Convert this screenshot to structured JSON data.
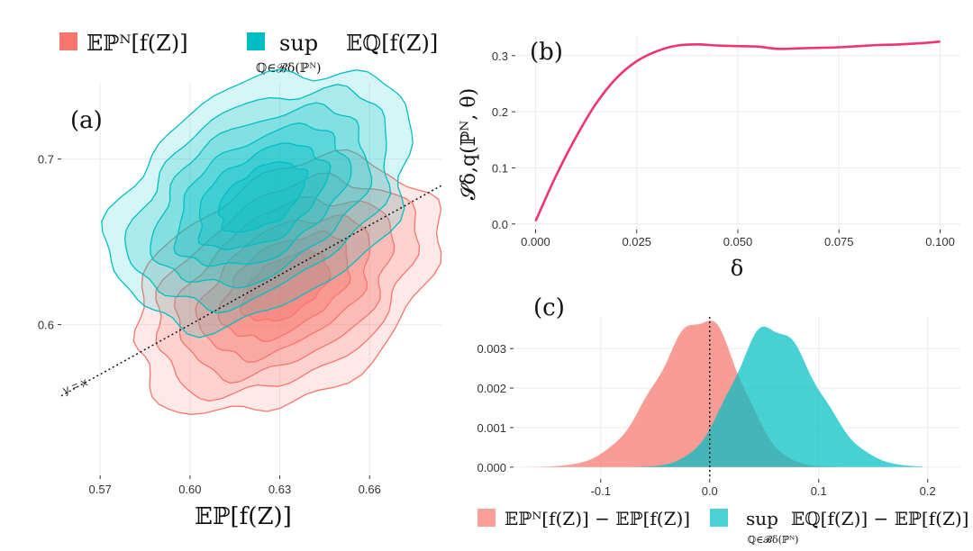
{
  "colors": {
    "red": "#F8766D",
    "teal": "#00BFC4",
    "pink": "#EE3377",
    "grid": "#ebebeb"
  },
  "legend_top": {
    "empirical_label": "𝔼ℙᴺ[f(Z)]",
    "worst_case_sup": "sup",
    "worst_case_sub": "ℚ∈𝓑δ(ℙᴺ)",
    "worst_case_expr": "𝔼ℚ[f(Z)]"
  },
  "legend_bottom": {
    "empirical_label": "𝔼ℙᴺ[f(Z)] − 𝔼ℙ[f(Z)]",
    "worst_case_sup": "sup",
    "worst_case_sub": "ℚ∈𝓑δ(ℙᴺ)",
    "worst_case_expr": "𝔼ℚ[f(Z)] − 𝔼ℙ[f(Z)]"
  },
  "chart_data": [
    {
      "panel": "(a)",
      "type": "contour",
      "title": "",
      "xlabel": "𝔼ℙ[f(Z)]",
      "ylabel": "",
      "xlim": [
        0.557,
        0.684
      ],
      "ylim": [
        0.509,
        0.746
      ],
      "xticks": [
        "0.57",
        "0.60",
        "0.63",
        "0.66"
      ],
      "xtick_values": [
        0.57,
        0.6,
        0.63,
        0.66
      ],
      "yticks": [
        "0.6",
        "0.7"
      ],
      "ytick_values": [
        0.6,
        0.7
      ],
      "reference_line": {
        "label": "y = x",
        "slope": 1,
        "intercept": 0
      },
      "series": [
        {
          "name": "empirical",
          "color": "red",
          "center": [
            0.632,
            0.623
          ],
          "levels": 6
        },
        {
          "name": "worst_case",
          "color": "teal",
          "center": [
            0.624,
            0.677
          ],
          "levels": 6
        }
      ]
    },
    {
      "panel": "(b)",
      "type": "line",
      "title": "",
      "xlabel": "δ",
      "ylabel": "𝓢δ,q(ℙᴺ, θ)",
      "xlim": [
        -0.005,
        0.105
      ],
      "ylim": [
        -0.01,
        0.335
      ],
      "xticks": [
        "0.000",
        "0.025",
        "0.050",
        "0.075",
        "0.100"
      ],
      "xtick_values": [
        0.0,
        0.025,
        0.05,
        0.075,
        0.1
      ],
      "yticks": [
        "0.0",
        "0.1",
        "0.2",
        "0.3"
      ],
      "ytick_values": [
        0.0,
        0.1,
        0.2,
        0.3
      ],
      "x": [
        0.0,
        0.005,
        0.01,
        0.015,
        0.02,
        0.025,
        0.03,
        0.035,
        0.04,
        0.045,
        0.05,
        0.055,
        0.06,
        0.065,
        0.07,
        0.075,
        0.08,
        0.085,
        0.09,
        0.095,
        0.1
      ],
      "y": [
        0.005,
        0.085,
        0.155,
        0.215,
        0.26,
        0.29,
        0.308,
        0.318,
        0.32,
        0.318,
        0.317,
        0.316,
        0.312,
        0.313,
        0.314,
        0.315,
        0.317,
        0.319,
        0.32,
        0.322,
        0.325
      ]
    },
    {
      "panel": "(c)",
      "type": "area",
      "title": "",
      "xlabel": "",
      "ylabel": "",
      "xlim": [
        -0.18,
        0.23
      ],
      "ylim": [
        -0.0003,
        0.0038
      ],
      "xticks": [
        "-0.1",
        "0.0",
        "0.1",
        "0.2"
      ],
      "xtick_values": [
        -0.1,
        0.0,
        0.1,
        0.2
      ],
      "yticks": [
        "0.000",
        "0.001",
        "0.002",
        "0.003"
      ],
      "ytick_values": [
        0.0,
        0.001,
        0.002,
        0.003
      ],
      "vline": 0.0,
      "series": [
        {
          "name": "empirical",
          "color": "red",
          "mean": -0.005,
          "peak": 0.00375,
          "sd_left": 0.043,
          "sd_right": 0.033,
          "range": [
            -0.165,
            0.145
          ]
        },
        {
          "name": "worst_case",
          "color": "teal",
          "mean": 0.055,
          "peak": 0.00355,
          "sd_left": 0.034,
          "sd_right": 0.042,
          "range": [
            -0.095,
            0.195
          ]
        }
      ]
    }
  ]
}
